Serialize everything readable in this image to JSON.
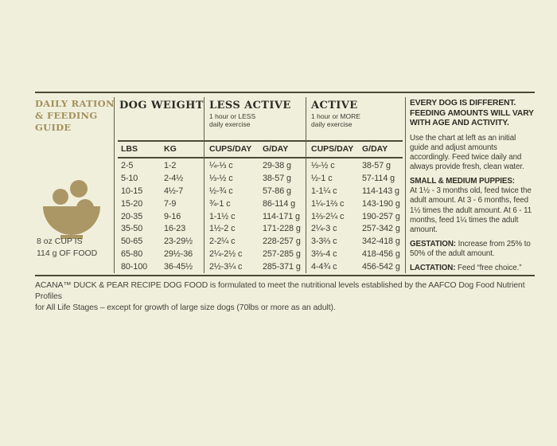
{
  "colors": {
    "background": "#f0efdc",
    "ink": "#3a392e",
    "heading_ink": "#2e2d24",
    "gold": "#a3905c",
    "bowl_gold": "#ab9765",
    "rule": "#4b4a39"
  },
  "left_panel": {
    "title": "DAILY RATION & FEEDING GUIDE",
    "icon": "kibble-bowl-icon",
    "cup_note_line1": "8 oz CUP IS",
    "cup_note_line2": "114 g OF FOOD"
  },
  "table": {
    "weight": {
      "title": "DOG WEIGHT",
      "col1": "LBS",
      "col2": "KG"
    },
    "less_active": {
      "title": "LESS ACTIVE",
      "subtitle_line1": "1 hour or LESS",
      "subtitle_line2": "daily exercise",
      "col1": "CUPS/DAY",
      "col2": "G/DAY"
    },
    "active": {
      "title": "ACTIVE",
      "subtitle_line1": "1 hour or MORE",
      "subtitle_line2": "daily exercise",
      "col1": "CUPS/DAY",
      "col2": "G/DAY"
    },
    "rows": [
      {
        "lbs": "2-5",
        "kg": "1-2",
        "less_cups": "¼-⅓ c",
        "less_g": "29-38 g",
        "active_cups": "⅓-½ c",
        "active_g": "38-57 g"
      },
      {
        "lbs": "5-10",
        "kg": "2-4½",
        "less_cups": "⅓-½ c",
        "less_g": "38-57 g",
        "active_cups": "½-1 c",
        "active_g": "57-114 g"
      },
      {
        "lbs": "10-15",
        "kg": "4½-7",
        "less_cups": "½-¾ c",
        "less_g": "57-86 g",
        "active_cups": "1-1¼ c",
        "active_g": "114-143 g"
      },
      {
        "lbs": "15-20",
        "kg": "7-9",
        "less_cups": "¾-1 c",
        "less_g": "86-114 g",
        "active_cups": "1¼-1⅔ c",
        "active_g": "143-190 g"
      },
      {
        "lbs": "20-35",
        "kg": "9-16",
        "less_cups": "1-1½ c",
        "less_g": "114-171 g",
        "active_cups": "1⅔-2¼ c",
        "active_g": "190-257 g"
      },
      {
        "lbs": "35-50",
        "kg": "16-23",
        "less_cups": "1½-2 c",
        "less_g": "171-228 g",
        "active_cups": "2¼-3 c",
        "active_g": "257-342 g"
      },
      {
        "lbs": "50-65",
        "kg": "23-29½",
        "less_cups": "2-2¼ c",
        "less_g": "228-257 g",
        "active_cups": "3-3⅔ c",
        "active_g": "342-418 g"
      },
      {
        "lbs": "65-80",
        "kg": "29½-36",
        "less_cups": "2¼-2½ c",
        "less_g": "257-285 g",
        "active_cups": "3⅔-4 c",
        "active_g": "418-456 g"
      },
      {
        "lbs": "80-100",
        "kg": "36-45½",
        "less_cups": "2½-3¼ c",
        "less_g": "285-371 g",
        "active_cups": "4-4¾ c",
        "active_g": "456-542 g"
      }
    ]
  },
  "right_panel": {
    "heading": "EVERY DOG IS DIFFERENT. FEEDING AMOUNTS WILL VARY WITH AGE AND ACTIVITY.",
    "intro": "Use the chart at left as an initial guide and adjust amounts accordingly. Feed twice daily and always provide fresh, clean water.",
    "puppies_heading": "SMALL & MEDIUM PUPPIES:",
    "puppies_text": "At 1½ - 3 months old, feed twice the adult amount. At 3 - 6 months, feed 1½ times the adult amount. At 6 - 11 months, feed 1¼ times the adult amount.",
    "gestation_label": "GESTATION:",
    "gestation_text": "Increase from 25% to 50% of the adult amount.",
    "lactation_label": "LACTATION:",
    "lactation_text": "Feed “free choice.”"
  },
  "footer": {
    "line1": "ACANA™ DUCK & PEAR RECIPE DOG FOOD is formulated to meet the nutritional levels established by the AAFCO Dog Food Nutrient Profiles",
    "line2": "for All Life Stages – except for growth of large size dogs (70lbs or more as an adult)."
  }
}
